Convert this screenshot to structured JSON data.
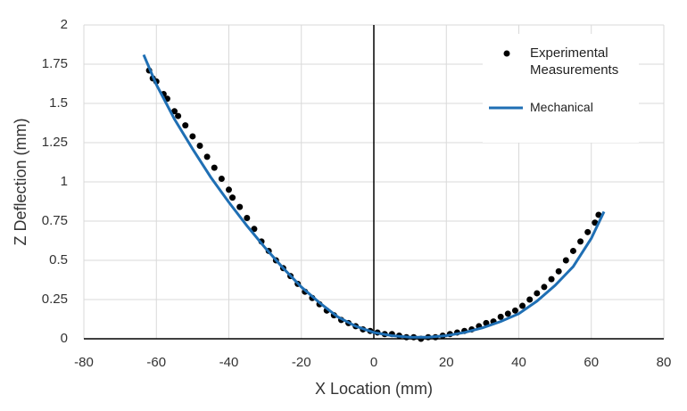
{
  "chart_data": {
    "type": "scatter-line",
    "x_label": "X Location (mm)",
    "y_label": "Z Deflection (mm)",
    "xlim": [
      -80,
      80
    ],
    "xticks": [
      -80,
      -60,
      -40,
      -20,
      0,
      20,
      40,
      60,
      80
    ],
    "ylim": [
      0,
      2
    ],
    "yticks": [
      0,
      0.25,
      0.5,
      0.75,
      1,
      1.25,
      1.5,
      1.75,
      2
    ],
    "grid": true,
    "legend": "upper-right",
    "series": [
      {
        "name": "Experimental Measurements",
        "color": "#000000",
        "mode": "markers",
        "x": [
          -62,
          -61,
          -60,
          -58,
          -57,
          -55,
          -54,
          -52,
          -50,
          -48,
          -46,
          -44,
          -42,
          -40,
          -39,
          -37,
          -35,
          -33,
          -31,
          -29,
          -27,
          -25,
          -23,
          -21,
          -19,
          -17,
          -15,
          -13,
          -11,
          -9,
          -7,
          -5,
          -3,
          -1,
          1,
          3,
          5,
          7,
          9,
          11,
          13,
          15,
          17,
          19,
          21,
          23,
          25,
          27,
          29,
          31,
          33,
          35,
          37,
          39,
          41,
          43,
          45,
          47,
          49,
          51,
          53,
          55,
          57,
          59,
          61,
          62
        ],
        "values": [
          1.71,
          1.66,
          1.64,
          1.56,
          1.53,
          1.45,
          1.42,
          1.36,
          1.29,
          1.23,
          1.16,
          1.09,
          1.02,
          0.95,
          0.9,
          0.84,
          0.77,
          0.7,
          0.62,
          0.56,
          0.5,
          0.45,
          0.4,
          0.35,
          0.3,
          0.26,
          0.22,
          0.18,
          0.15,
          0.12,
          0.1,
          0.08,
          0.06,
          0.05,
          0.04,
          0.03,
          0.03,
          0.02,
          0.01,
          0.01,
          0,
          0.01,
          0.01,
          0.02,
          0.03,
          0.04,
          0.05,
          0.06,
          0.08,
          0.1,
          0.11,
          0.14,
          0.16,
          0.18,
          0.21,
          0.25,
          0.29,
          0.33,
          0.38,
          0.43,
          0.5,
          0.56,
          0.62,
          0.68,
          0.74,
          0.79
        ]
      },
      {
        "name": "Mechanical",
        "color": "#1f6fb4",
        "mode": "line",
        "x": [
          -63.5,
          -60,
          -55,
          -50,
          -45,
          -40,
          -35,
          -30,
          -25,
          -20,
          -15,
          -10,
          -5,
          0,
          5,
          10,
          15,
          20,
          25,
          30,
          35,
          40,
          45,
          50,
          55,
          60,
          63.5
        ],
        "values": [
          1.81,
          1.62,
          1.4,
          1.21,
          1.03,
          0.87,
          0.72,
          0.58,
          0.45,
          0.33,
          0.23,
          0.14,
          0.08,
          0.04,
          0.02,
          0.01,
          0.01,
          0.02,
          0.04,
          0.07,
          0.11,
          0.16,
          0.24,
          0.34,
          0.46,
          0.64,
          0.81
        ]
      }
    ]
  }
}
